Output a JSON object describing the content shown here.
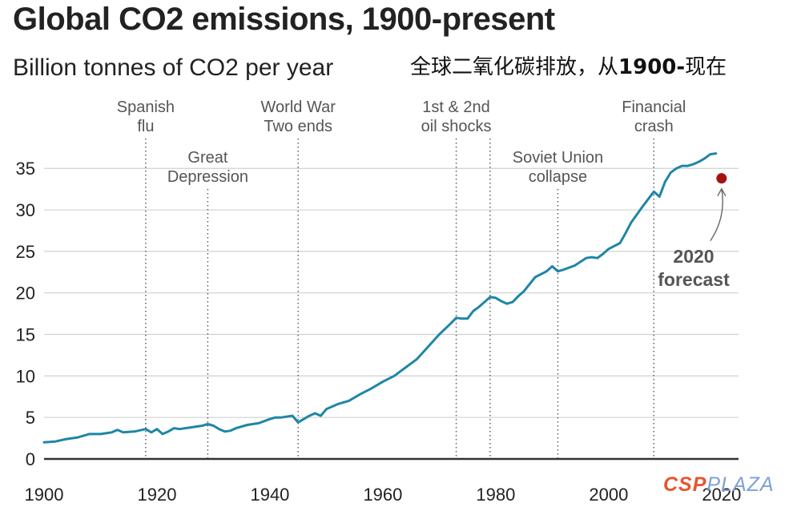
{
  "header": {
    "title": "Global CO2 emissions, 1900-present",
    "subtitle": "Billion tonnes of CO2 per year",
    "cn_prefix": "全球二氧化碳排放，从",
    "cn_year": "1900-",
    "cn_suffix": "现在"
  },
  "chart_data": {
    "type": "line",
    "title": "Global CO2 emissions, 1900-present",
    "ylabel": "Billion tonnes of CO2 per year",
    "xlim": [
      1900,
      2023
    ],
    "ylim": [
      0,
      37
    ],
    "x_ticks": [
      1900,
      1920,
      1940,
      1960,
      1980,
      2000,
      2020
    ],
    "y_ticks": [
      0,
      5,
      10,
      15,
      20,
      25,
      30,
      35
    ],
    "grid": "horizontal",
    "colors": {
      "line": "#1f86a6",
      "forecast": "#a3130f",
      "grid": "#d0d0d0",
      "axis": "#333333",
      "annotation": "#555555"
    },
    "series": [
      {
        "name": "Global CO2 emissions",
        "x": [
          1900,
          1902,
          1904,
          1906,
          1908,
          1910,
          1912,
          1913,
          1914,
          1916,
          1918,
          1919,
          1920,
          1921,
          1922,
          1923,
          1924,
          1926,
          1928,
          1929,
          1930,
          1931,
          1932,
          1933,
          1934,
          1936,
          1938,
          1940,
          1941,
          1942,
          1944,
          1945,
          1946,
          1947,
          1948,
          1949,
          1950,
          1952,
          1954,
          1956,
          1958,
          1960,
          1962,
          1964,
          1966,
          1968,
          1970,
          1972,
          1973,
          1974,
          1975,
          1976,
          1977,
          1979,
          1980,
          1981,
          1982,
          1983,
          1984,
          1985,
          1987,
          1989,
          1990,
          1991,
          1992,
          1994,
          1996,
          1997,
          1998,
          1999,
          2000,
          2002,
          2003,
          2004,
          2006,
          2008,
          2009,
          2010,
          2011,
          2012,
          2013,
          2014,
          2015,
          2016,
          2017,
          2018,
          2019
        ],
        "values": [
          2.0,
          2.1,
          2.4,
          2.6,
          3.0,
          3.0,
          3.2,
          3.5,
          3.2,
          3.3,
          3.6,
          3.2,
          3.6,
          3.0,
          3.3,
          3.7,
          3.6,
          3.8,
          4.0,
          4.2,
          4.0,
          3.6,
          3.3,
          3.4,
          3.7,
          4.1,
          4.3,
          4.8,
          5.0,
          5.0,
          5.2,
          4.4,
          4.8,
          5.2,
          5.5,
          5.2,
          6.0,
          6.6,
          7.0,
          7.8,
          8.5,
          9.3,
          10.0,
          11.0,
          12.0,
          13.5,
          15.0,
          16.3,
          17.0,
          16.9,
          16.9,
          17.8,
          18.3,
          19.5,
          19.4,
          19.0,
          18.7,
          18.9,
          19.6,
          20.2,
          21.9,
          22.6,
          23.2,
          22.6,
          22.8,
          23.3,
          24.2,
          24.3,
          24.2,
          24.7,
          25.3,
          26.0,
          27.2,
          28.5,
          30.4,
          32.2,
          31.6,
          33.4,
          34.5,
          35.0,
          35.3,
          35.3,
          35.5,
          35.8,
          36.2,
          36.7,
          36.8
        ]
      }
    ],
    "forecast": {
      "year": 2020,
      "value": 33.8,
      "label_line1": "2020",
      "label_line2": "forecast"
    },
    "events": [
      {
        "year": 1918,
        "line1": "Spanish",
        "line2": "flu",
        "row": "upper"
      },
      {
        "year": 1929,
        "line1": "Great",
        "line2": "Depression",
        "row": "lower"
      },
      {
        "year": 1945,
        "line1": "World War",
        "line2": "Two ends",
        "row": "upper"
      },
      {
        "year": 1973,
        "line1": "1st & 2nd",
        "line2": "oil shocks",
        "row": "upper"
      },
      {
        "year": 1979,
        "line1": "",
        "line2": "",
        "row": "upper"
      },
      {
        "year": 1991,
        "line1": "Soviet Union",
        "line2": "collapse",
        "row": "lower"
      },
      {
        "year": 2008,
        "line1": "Financial",
        "line2": "crash",
        "row": "upper"
      }
    ]
  },
  "watermark": {
    "part1": "CSP",
    "part2": "PLAZA"
  }
}
